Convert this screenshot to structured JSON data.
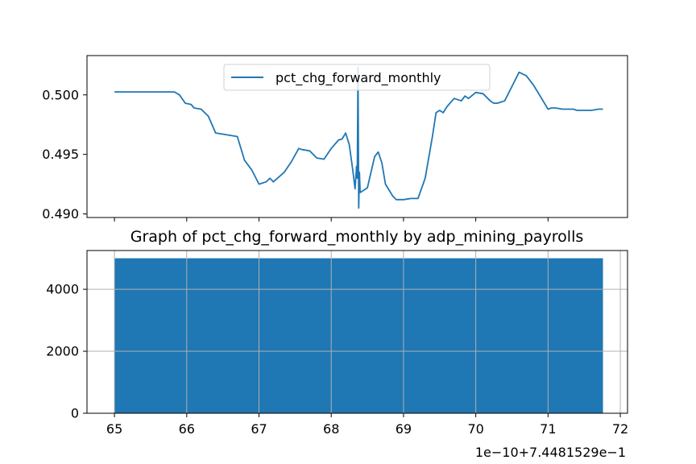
{
  "chart_data": [
    {
      "type": "line",
      "title": "",
      "xlabel": "",
      "ylabel": "",
      "xlim": [
        64.62,
        72.1
      ],
      "ylim": [
        0.4897,
        0.5033
      ],
      "yticks": [
        0.49,
        0.495,
        0.5
      ],
      "ytick_labels": [
        "0.490",
        "0.495",
        "0.500"
      ],
      "xticks": [
        65,
        66,
        67,
        68,
        69,
        70,
        71
      ],
      "grid": false,
      "legend_position": "top-center",
      "series": [
        {
          "name": "pct_chg_forward_monthly",
          "color": "#1f77b4",
          "x": [
            65.0,
            65.3,
            65.6,
            65.83,
            65.9,
            65.98,
            66.06,
            66.1,
            66.2,
            66.3,
            66.4,
            66.5,
            66.6,
            66.7,
            66.8,
            66.9,
            67.0,
            67.1,
            67.15,
            67.2,
            67.35,
            67.45,
            67.55,
            67.6,
            67.7,
            67.8,
            67.9,
            68.0,
            68.1,
            68.15,
            68.2,
            68.25,
            68.3,
            68.33,
            68.35,
            68.36,
            68.37,
            68.38,
            68.39,
            68.4,
            68.5,
            68.6,
            68.65,
            68.7,
            68.75,
            68.8,
            68.85,
            68.9,
            69.0,
            69.1,
            69.2,
            69.3,
            69.4,
            69.45,
            69.5,
            69.55,
            69.6,
            69.7,
            69.8,
            69.85,
            69.9,
            70.0,
            70.1,
            70.2,
            70.25,
            70.3,
            70.4,
            70.5,
            70.6,
            70.7,
            70.8,
            70.9,
            71.0,
            71.05,
            71.1,
            71.2,
            71.3,
            71.35,
            71.4,
            71.5,
            71.6,
            71.7,
            71.76
          ],
          "y": [
            0.50025,
            0.50025,
            0.50025,
            0.50025,
            0.5,
            0.4993,
            0.4992,
            0.4989,
            0.4988,
            0.4982,
            0.4968,
            0.4967,
            0.4966,
            0.4965,
            0.4945,
            0.4937,
            0.4925,
            0.4927,
            0.493,
            0.4927,
            0.4935,
            0.4944,
            0.4955,
            0.4954,
            0.4953,
            0.4947,
            0.4946,
            0.4955,
            0.4962,
            0.4963,
            0.4968,
            0.4958,
            0.4936,
            0.4921,
            0.494,
            0.493,
            0.5023,
            0.4905,
            0.4935,
            0.4918,
            0.4922,
            0.4948,
            0.4952,
            0.4943,
            0.4925,
            0.492,
            0.4915,
            0.4912,
            0.4912,
            0.4913,
            0.4913,
            0.493,
            0.4965,
            0.4985,
            0.4987,
            0.4985,
            0.499,
            0.4997,
            0.4995,
            0.4999,
            0.4997,
            0.5002,
            0.5001,
            0.4995,
            0.4993,
            0.4993,
            0.4995,
            0.5007,
            0.5019,
            0.5016,
            0.5008,
            0.4998,
            0.4988,
            0.4989,
            0.4989,
            0.4988,
            0.4988,
            0.4988,
            0.4987,
            0.4987,
            0.4987,
            0.4988,
            0.4988
          ]
        }
      ]
    },
    {
      "type": "bar",
      "title": "Graph of pct_chg_forward_monthly by adp_mining_payrolls",
      "xlabel": "",
      "ylabel": "",
      "xlim": [
        64.62,
        72.1
      ],
      "ylim": [
        0,
        5250
      ],
      "xticks": [
        65,
        66,
        67,
        68,
        69,
        70,
        71,
        72
      ],
      "yticks": [
        0,
        2000,
        4000
      ],
      "x_offset_label": "1e−10+7.4481529e−1",
      "grid": true,
      "bars": [
        {
          "x_start": 65.0,
          "x_end": 71.76,
          "value": 5000,
          "color": "#1f77b4"
        }
      ]
    }
  ]
}
